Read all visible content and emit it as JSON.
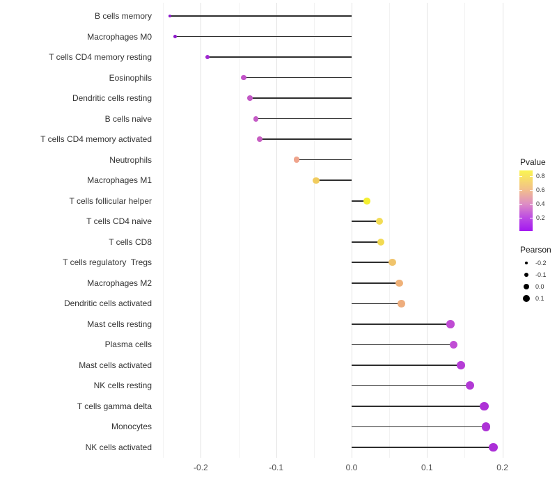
{
  "chart_data": {
    "type": "lollipop",
    "orientation": "horizontal",
    "title": "",
    "xlabel": "",
    "ylabel": "",
    "x_ticks": [
      -0.2,
      -0.1,
      0.0,
      0.1,
      0.2
    ],
    "x_tick_labels": [
      "-0.2",
      "-0.1",
      "0.0",
      "0.1",
      "0.2"
    ],
    "x_minor_ticks": [
      -0.25,
      -0.15,
      -0.05,
      0.05,
      0.15
    ],
    "xlim": [
      -0.2605,
      0.2105
    ],
    "grid": "vertical-only",
    "baseline": 0.0,
    "points": [
      {
        "category": "B cells memory",
        "pearson": -0.241,
        "color": "#8a15c9",
        "diameter": 4.4
      },
      {
        "category": "Macrophages M0",
        "pearson": -0.234,
        "color": "#8d18cb",
        "diameter": 5.0
      },
      {
        "category": "T cells CD4 memory resting",
        "pearson": -0.191,
        "color": "#a128d2",
        "diameter": 6.4
      },
      {
        "category": "Eosinophils",
        "pearson": -0.143,
        "color": "#c253c8",
        "diameter": 7.4
      },
      {
        "category": "Dendritic cells resting",
        "pearson": -0.135,
        "color": "#c258c5",
        "diameter": 7.6
      },
      {
        "category": "B cells naive",
        "pearson": -0.127,
        "color": "#c55cc6",
        "diameter": 7.8
      },
      {
        "category": "T cells CD4 memory activated",
        "pearson": -0.122,
        "color": "#c75ec2",
        "diameter": 8.0
      },
      {
        "category": "Neutrophils",
        "pearson": -0.073,
        "color": "#efa48c",
        "diameter": 8.8
      },
      {
        "category": "Macrophages M1",
        "pearson": -0.047,
        "color": "#f1cc5e",
        "diameter": 9.2
      },
      {
        "category": "T cells follicular helper",
        "pearson": 0.02,
        "color": "#f4ef31",
        "diameter": 9.8
      },
      {
        "category": "T cells CD4 naive",
        "pearson": 0.037,
        "color": "#f2dc55",
        "diameter": 10.2
      },
      {
        "category": "T cells CD8",
        "pearson": 0.039,
        "color": "#f2da52",
        "diameter": 10.2
      },
      {
        "category": "T cells regulatory  Tregs",
        "pearson": 0.054,
        "color": "#f0c46c",
        "diameter": 10.4
      },
      {
        "category": "Macrophages M2",
        "pearson": 0.063,
        "color": "#efb178",
        "diameter": 10.6
      },
      {
        "category": "Dendritic cells activated",
        "pearson": 0.066,
        "color": "#eead7d",
        "diameter": 10.6
      },
      {
        "category": "Mast cells resting",
        "pearson": 0.131,
        "color": "#bf4bd3",
        "diameter": 11.4
      },
      {
        "category": "Plasma cells",
        "pearson": 0.135,
        "color": "#c04dd4",
        "diameter": 11.4
      },
      {
        "category": "Mast cells activated",
        "pearson": 0.145,
        "color": "#b53cd6",
        "diameter": 11.8
      },
      {
        "category": "NK cells resting",
        "pearson": 0.157,
        "color": "#b23ad5",
        "diameter": 12.0
      },
      {
        "category": "T cells gamma delta",
        "pearson": 0.176,
        "color": "#ad31d6",
        "diameter": 12.4
      },
      {
        "category": "Monocytes",
        "pearson": 0.178,
        "color": "#ad32d6",
        "diameter": 12.4
      },
      {
        "category": "NK cells activated",
        "pearson": 0.188,
        "color": "#ab2fd7",
        "diameter": 12.8
      }
    ]
  },
  "legend_pvalue": {
    "title": "Pvalue",
    "tick_values": [
      0.8,
      0.6,
      0.4,
      0.2
    ],
    "tick_labels": [
      "0.8",
      "0.6",
      "0.4",
      "0.2"
    ],
    "bar_domain": [
      0.01,
      0.88
    ],
    "gradient_stops": [
      {
        "pct": 0,
        "color": "#a318f0"
      },
      {
        "pct": 22,
        "color": "#bc4be3"
      },
      {
        "pct": 45,
        "color": "#de8ec4"
      },
      {
        "pct": 68,
        "color": "#f2be8c"
      },
      {
        "pct": 91,
        "color": "#f8e660"
      },
      {
        "pct": 100,
        "color": "#faf452"
      }
    ]
  },
  "legend_pearson": {
    "title": "Pearson",
    "values": [
      -0.2,
      -0.1,
      0.0,
      0.1
    ],
    "labels": [
      "-0.2",
      "-0.1",
      "0.0",
      "0.1"
    ],
    "diameters": [
      4.4,
      6.6,
      8.7,
      10.4
    ],
    "dot_color": "#000000"
  },
  "colors": {
    "background": "#ffffff",
    "segment": "#2d2d2d",
    "grid_major": "#e3e3e3",
    "grid_minor": "#f2f2f2",
    "category_label": "#333333",
    "tick_label": "#4d4d4d"
  }
}
